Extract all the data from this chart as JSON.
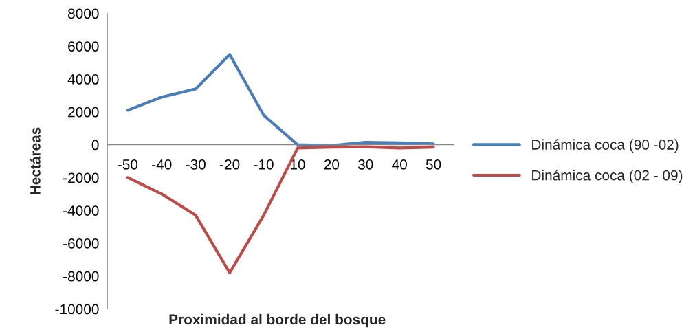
{
  "chart_data": {
    "type": "line",
    "xlabel": "Proximidad al borde del bosque",
    "ylabel": "Hectáreas",
    "categories": [
      "-50",
      "-40",
      "-30",
      "-20",
      "-10",
      "10",
      "20",
      "30",
      "40",
      "50"
    ],
    "series": [
      {
        "name": "Dinámica coca (90 -02)",
        "color": "#4a7ebb",
        "values": [
          2100,
          2900,
          3400,
          5500,
          1800,
          0,
          -50,
          150,
          120,
          50
        ]
      },
      {
        "name": "Dinámica coca (02 - 09)",
        "color": "#be4b48",
        "values": [
          -2000,
          -3000,
          -4300,
          -7800,
          -4300,
          -200,
          -150,
          -130,
          -200,
          -150
        ]
      }
    ],
    "ylim": [
      -10000,
      8000
    ],
    "yticks": [
      -10000,
      -8000,
      -6000,
      -4000,
      -2000,
      0,
      2000,
      4000,
      6000,
      8000
    ],
    "grid": false,
    "legend": "right",
    "marker": "none",
    "line_style": "solid"
  }
}
